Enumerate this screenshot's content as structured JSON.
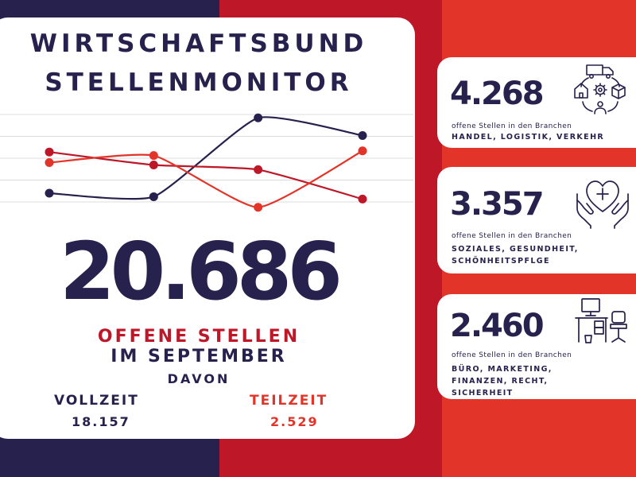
{
  "header": {
    "title_line1": "WIRTSCHAFTSBUND",
    "title_line2": "STELLENMONITOR"
  },
  "summary": {
    "total": "20.686",
    "offene_label": "OFFENE STELLEN",
    "month_label": "IM SEPTEMBER",
    "davon": "DAVON",
    "vollzeit_label": "VOLLZEIT",
    "vollzeit_value": "18.157",
    "teilzeit_label": "TEILZEIT",
    "teilzeit_value": "2.529"
  },
  "cards": [
    {
      "value": "4.268",
      "subtitle": "offene Stellen in den Branchen",
      "category_lines": [
        "HANDEL, LOGISTIK, VERKEHR"
      ],
      "icon": "logistics-icon"
    },
    {
      "value": "3.357",
      "subtitle": "offene Stellen in den Branchen",
      "category_lines": [
        "SOZIALES, GESUNDHEIT,",
        "SCHÖNHEITSPFLGE"
      ],
      "icon": "care-heart-icon"
    },
    {
      "value": "2.460",
      "subtitle": "offene Stellen in den Branchen",
      "category_lines": [
        "BÜRO, MARKETING,",
        "FINANZEN, RECHT,",
        "SICHERHEIT"
      ],
      "icon": "office-desk-icon"
    }
  ],
  "colors": {
    "navy": "#27214d",
    "crimson": "#bd1728",
    "red": "#e23428",
    "white": "#ffffff"
  },
  "chart_data": {
    "type": "line",
    "title": "",
    "xlabel": "",
    "ylabel": "",
    "x": [
      1,
      2,
      3,
      4
    ],
    "ylim": [
      0,
      10
    ],
    "grid": true,
    "legend": "none",
    "series": [
      {
        "values": [
          2.5,
          2.2,
          8.9,
          7.4
        ],
        "color": "#27214d"
      },
      {
        "values": [
          6.0,
          4.9,
          4.5,
          2.0
        ],
        "color": "#bd1728"
      },
      {
        "values": [
          5.1,
          5.7,
          1.3,
          6.1
        ],
        "color": "#e23428"
      }
    ]
  }
}
